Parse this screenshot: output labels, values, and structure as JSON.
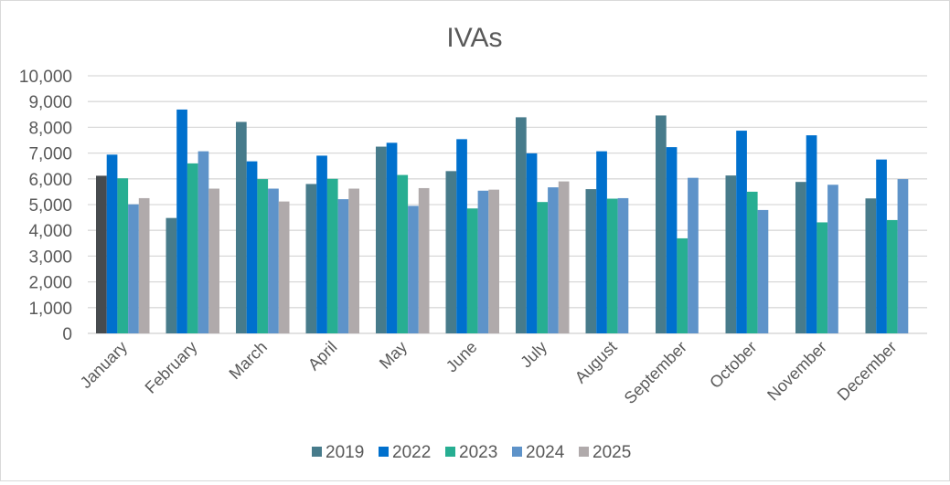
{
  "chart_data": {
    "type": "bar",
    "title": "IVAs",
    "xlabel": "",
    "ylabel": "",
    "ylim": [
      0,
      10000
    ],
    "yticks": [
      "0",
      "1,000",
      "2,000",
      "3,000",
      "4,000",
      "5,000",
      "6,000",
      "7,000",
      "8,000",
      "9,000",
      "10,000"
    ],
    "grid": true,
    "legend_position": "bottom",
    "categories": [
      "January",
      "February",
      "March",
      "April",
      "May",
      "June",
      "July",
      "August",
      "September",
      "October",
      "November",
      "December"
    ],
    "series": [
      {
        "name": "2019",
        "color": "#477b8b",
        "values": [
          6120,
          4480,
          8210,
          5800,
          7250,
          6300,
          8390,
          5600,
          8460,
          6130,
          5880,
          5240
        ]
      },
      {
        "name": "2022",
        "color": "#0070cd",
        "values": [
          6940,
          8690,
          6680,
          6900,
          7400,
          7540,
          6990,
          7070,
          7230,
          7870,
          7690,
          6750
        ]
      },
      {
        "name": "2023",
        "color": "#27ae92",
        "values": [
          6020,
          6600,
          5990,
          6000,
          6150,
          4850,
          5100,
          5230,
          3690,
          5500,
          4310,
          4400
        ]
      },
      {
        "name": "2024",
        "color": "#5e93c9",
        "values": [
          5010,
          7070,
          5620,
          5210,
          4950,
          5540,
          5670,
          5250,
          6040,
          4790,
          5770,
          5990
        ]
      },
      {
        "name": "2025",
        "color": "#b0aaab",
        "values": [
          5250,
          5620,
          5120,
          5620,
          5640,
          5580,
          5900,
          null,
          null,
          null,
          null,
          null
        ]
      }
    ],
    "highlighted_point": {
      "series": "2019",
      "category": "January",
      "color": "#474b4e"
    }
  }
}
